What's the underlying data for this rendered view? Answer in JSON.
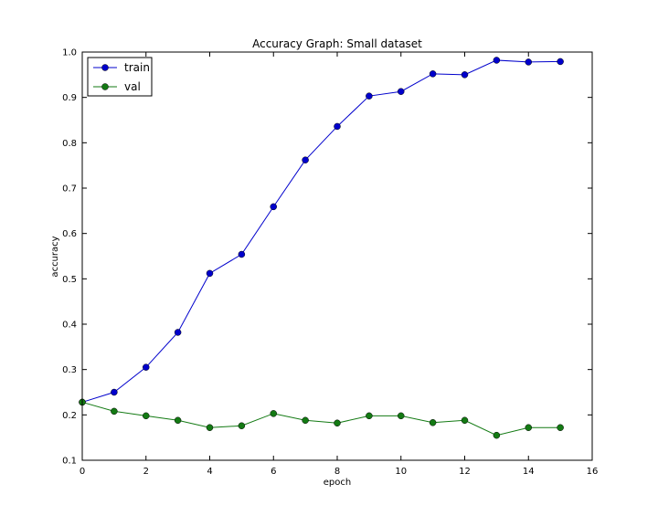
{
  "chart_data": {
    "type": "line",
    "title": "Accuracy Graph: Small dataset",
    "xlabel": "epoch",
    "ylabel": "accuracy",
    "xlim": [
      0,
      16
    ],
    "ylim": [
      0.1,
      1.0
    ],
    "xticks": [
      0,
      2,
      4,
      6,
      8,
      10,
      12,
      14,
      16
    ],
    "yticks": [
      0.1,
      0.2,
      0.3,
      0.4,
      0.5,
      0.6,
      0.7,
      0.8,
      0.9,
      1.0
    ],
    "xtick_labels": [
      "0",
      "2",
      "4",
      "6",
      "8",
      "10",
      "12",
      "14",
      "16"
    ],
    "ytick_labels": [
      "0.1",
      "0.2",
      "0.3",
      "0.4",
      "0.5",
      "0.6",
      "0.7",
      "0.8",
      "0.9",
      "1.0"
    ],
    "grid": false,
    "legend_position": "top-left",
    "x": [
      0,
      1,
      2,
      3,
      4,
      5,
      6,
      7,
      8,
      9,
      10,
      11,
      12,
      13,
      14,
      15
    ],
    "series": [
      {
        "name": "train",
        "color": "#0000cc",
        "values": [
          0.228,
          0.25,
          0.305,
          0.382,
          0.512,
          0.554,
          0.659,
          0.762,
          0.836,
          0.903,
          0.913,
          0.952,
          0.95,
          0.982,
          0.978,
          0.979
        ]
      },
      {
        "name": "val",
        "color": "#137a13",
        "values": [
          0.228,
          0.208,
          0.198,
          0.188,
          0.172,
          0.176,
          0.203,
          0.188,
          0.182,
          0.198,
          0.198,
          0.183,
          0.188,
          0.155,
          0.172,
          0.172
        ]
      }
    ]
  }
}
